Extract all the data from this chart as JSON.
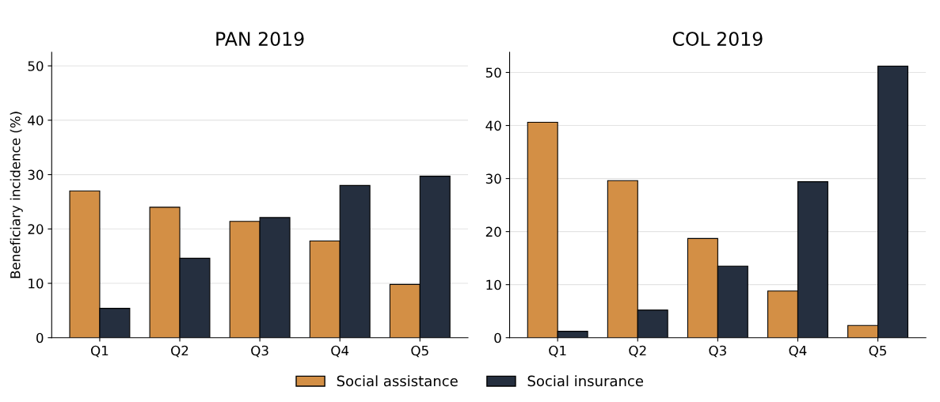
{
  "chart_data": [
    {
      "type": "bar",
      "title": "PAN 2019",
      "ylabel": "Beneficiary incidence (%)",
      "categories": [
        "Q1",
        "Q2",
        "Q3",
        "Q4",
        "Q5"
      ],
      "ylim": [
        0,
        52.5
      ],
      "yticks": [
        0,
        10,
        20,
        30,
        40,
        50
      ],
      "grid": "y",
      "legend": "bottom",
      "series": [
        {
          "name": "Social assistance",
          "color": "#d38f45",
          "values": [
            27,
            24,
            21.4,
            17.8,
            9.8
          ]
        },
        {
          "name": "Social insurance",
          "color": "#252f3f",
          "values": [
            5.4,
            14.6,
            22.1,
            28,
            29.7
          ]
        }
      ]
    },
    {
      "type": "bar",
      "title": "COL 2019",
      "categories": [
        "Q1",
        "Q2",
        "Q3",
        "Q4",
        "Q5"
      ],
      "ylim": [
        0,
        53.8
      ],
      "yticks": [
        0,
        10,
        20,
        30,
        40,
        50
      ],
      "grid": "y",
      "series": [
        {
          "color": "#d38f45",
          "values": [
            40.6,
            29.6,
            18.7,
            8.8,
            2.3
          ]
        },
        {
          "color": "#252f3f",
          "values": [
            1.2,
            5.2,
            13.5,
            29.4,
            51.2
          ]
        }
      ]
    }
  ]
}
